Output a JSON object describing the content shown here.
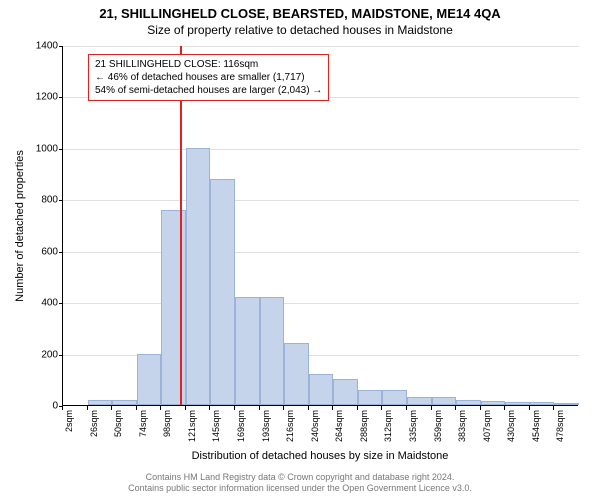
{
  "title": "21, SHILLINGHELD CLOSE, BEARSTED, MAIDSTONE, ME14 4QA",
  "subtitle": "Size of property relative to detached houses in Maidstone",
  "y_axis": {
    "label": "Number of detached properties",
    "min": 0,
    "max": 1400,
    "step": 200,
    "ticks": [
      0,
      200,
      400,
      600,
      800,
      1000,
      1200,
      1400
    ]
  },
  "x_axis": {
    "label": "Distribution of detached houses by size in Maidstone",
    "ticks": [
      "2sqm",
      "26sqm",
      "50sqm",
      "74sqm",
      "98sqm",
      "121sqm",
      "145sqm",
      "169sqm",
      "193sqm",
      "216sqm",
      "240sqm",
      "264sqm",
      "288sqm",
      "312sqm",
      "335sqm",
      "359sqm",
      "383sqm",
      "407sqm",
      "430sqm",
      "454sqm",
      "478sqm"
    ]
  },
  "bars": {
    "values": [
      0,
      20,
      20,
      200,
      760,
      1000,
      880,
      420,
      420,
      240,
      120,
      100,
      60,
      60,
      30,
      30,
      20,
      15,
      10,
      10,
      5
    ],
    "color": "#c5d4ea",
    "border_color": "#9ab3d6"
  },
  "marker": {
    "position_sqm": 116,
    "color": "#d22"
  },
  "info_box": {
    "line1": "21 SHILLINGHELD CLOSE: 116sqm",
    "line2": "← 46% of detached houses are smaller (1,717)",
    "line3": "54% of semi-detached houses are larger (2,043) →",
    "border_color": "#d22"
  },
  "footer": {
    "line1": "Contains HM Land Registry data © Crown copyright and database right 2024.",
    "line2": "Contains public sector information licensed under the Open Government Licence v3.0."
  },
  "styling": {
    "background_color": "#ffffff",
    "grid_color": "#e0e0e0",
    "axis_color": "#000000",
    "title_fontsize": 13,
    "subtitle_fontsize": 12,
    "label_fontsize": 11,
    "tick_fontsize": 10,
    "footer_color": "#777777"
  }
}
